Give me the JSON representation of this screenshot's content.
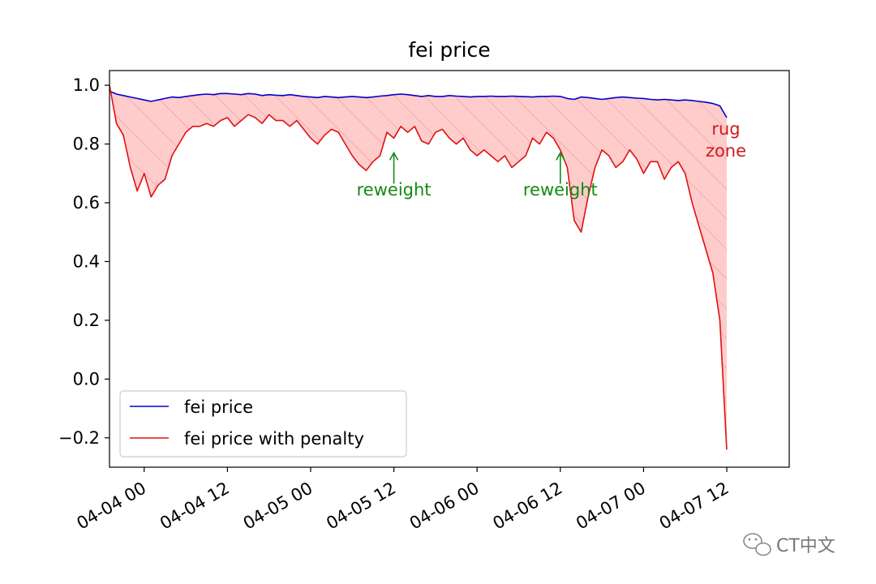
{
  "chart_data": {
    "type": "line",
    "title": "fei price",
    "xlabel": "",
    "ylabel": "",
    "xlim": [
      "2021-04-03 19:00",
      "2021-04-07 21:00"
    ],
    "ylim": [
      -0.3,
      1.05
    ],
    "grid": false,
    "legend_position": "lower-left",
    "x_ticks": [
      "04-04 00",
      "04-04 12",
      "04-05 00",
      "04-05 12",
      "04-06 00",
      "04-06 12",
      "04-07 00",
      "04-07 12"
    ],
    "y_ticks": [
      "1.0",
      "0.8",
      "0.6",
      "0.4",
      "0.2",
      "0.0",
      "−0.2"
    ],
    "x": [
      "2021-04-03 19:00",
      "2021-04-03 20:00",
      "2021-04-03 21:00",
      "2021-04-03 22:00",
      "2021-04-03 23:00",
      "2021-04-04 00:00",
      "2021-04-04 01:00",
      "2021-04-04 02:00",
      "2021-04-04 03:00",
      "2021-04-04 04:00",
      "2021-04-04 05:00",
      "2021-04-04 06:00",
      "2021-04-04 07:00",
      "2021-04-04 08:00",
      "2021-04-04 09:00",
      "2021-04-04 10:00",
      "2021-04-04 11:00",
      "2021-04-04 12:00",
      "2021-04-04 13:00",
      "2021-04-04 14:00",
      "2021-04-04 15:00",
      "2021-04-04 16:00",
      "2021-04-04 17:00",
      "2021-04-04 18:00",
      "2021-04-04 19:00",
      "2021-04-04 20:00",
      "2021-04-04 21:00",
      "2021-04-04 22:00",
      "2021-04-04 23:00",
      "2021-04-05 00:00",
      "2021-04-05 01:00",
      "2021-04-05 02:00",
      "2021-04-05 03:00",
      "2021-04-05 04:00",
      "2021-04-05 05:00",
      "2021-04-05 06:00",
      "2021-04-05 07:00",
      "2021-04-05 08:00",
      "2021-04-05 09:00",
      "2021-04-05 10:00",
      "2021-04-05 11:00",
      "2021-04-05 12:00",
      "2021-04-05 13:00",
      "2021-04-05 14:00",
      "2021-04-05 15:00",
      "2021-04-05 16:00",
      "2021-04-05 17:00",
      "2021-04-05 18:00",
      "2021-04-05 19:00",
      "2021-04-05 20:00",
      "2021-04-05 21:00",
      "2021-04-05 22:00",
      "2021-04-05 23:00",
      "2021-04-06 00:00",
      "2021-04-06 01:00",
      "2021-04-06 02:00",
      "2021-04-06 03:00",
      "2021-04-06 04:00",
      "2021-04-06 05:00",
      "2021-04-06 06:00",
      "2021-04-06 07:00",
      "2021-04-06 08:00",
      "2021-04-06 09:00",
      "2021-04-06 10:00",
      "2021-04-06 11:00",
      "2021-04-06 12:00",
      "2021-04-06 13:00",
      "2021-04-06 14:00",
      "2021-04-06 15:00",
      "2021-04-06 16:00",
      "2021-04-06 17:00",
      "2021-04-06 18:00",
      "2021-04-06 19:00",
      "2021-04-06 20:00",
      "2021-04-06 21:00",
      "2021-04-06 22:00",
      "2021-04-06 23:00",
      "2021-04-07 00:00",
      "2021-04-07 01:00",
      "2021-04-07 02:00",
      "2021-04-07 03:00",
      "2021-04-07 04:00",
      "2021-04-07 05:00",
      "2021-04-07 06:00",
      "2021-04-07 07:00",
      "2021-04-07 08:00",
      "2021-04-07 09:00",
      "2021-04-07 10:00",
      "2021-04-07 11:00",
      "2021-04-07 12:00"
    ],
    "series": [
      {
        "name": "fei price",
        "color": "#0000cc",
        "values": [
          0.98,
          0.97,
          0.965,
          0.96,
          0.955,
          0.95,
          0.945,
          0.95,
          0.955,
          0.96,
          0.958,
          0.962,
          0.965,
          0.968,
          0.97,
          0.968,
          0.972,
          0.972,
          0.97,
          0.968,
          0.972,
          0.97,
          0.965,
          0.968,
          0.966,
          0.965,
          0.968,
          0.965,
          0.962,
          0.96,
          0.958,
          0.962,
          0.96,
          0.958,
          0.96,
          0.962,
          0.96,
          0.958,
          0.96,
          0.963,
          0.965,
          0.968,
          0.97,
          0.968,
          0.965,
          0.962,
          0.965,
          0.962,
          0.962,
          0.965,
          0.963,
          0.962,
          0.96,
          0.962,
          0.962,
          0.963,
          0.962,
          0.962,
          0.963,
          0.962,
          0.961,
          0.96,
          0.962,
          0.962,
          0.963,
          0.962,
          0.955,
          0.952,
          0.96,
          0.958,
          0.955,
          0.952,
          0.955,
          0.958,
          0.96,
          0.958,
          0.956,
          0.955,
          0.952,
          0.95,
          0.952,
          0.95,
          0.948,
          0.95,
          0.948,
          0.945,
          0.942,
          0.938,
          0.93,
          0.89
        ]
      },
      {
        "name": "fei price with penalty",
        "color": "#e01010",
        "values": [
          1.0,
          0.87,
          0.83,
          0.72,
          0.64,
          0.7,
          0.62,
          0.66,
          0.68,
          0.76,
          0.8,
          0.84,
          0.86,
          0.86,
          0.87,
          0.86,
          0.88,
          0.89,
          0.86,
          0.88,
          0.9,
          0.89,
          0.87,
          0.9,
          0.88,
          0.88,
          0.86,
          0.88,
          0.85,
          0.82,
          0.8,
          0.83,
          0.85,
          0.84,
          0.8,
          0.76,
          0.73,
          0.71,
          0.74,
          0.76,
          0.84,
          0.82,
          0.86,
          0.84,
          0.86,
          0.81,
          0.8,
          0.84,
          0.85,
          0.82,
          0.8,
          0.82,
          0.78,
          0.76,
          0.78,
          0.76,
          0.74,
          0.76,
          0.72,
          0.74,
          0.76,
          0.82,
          0.8,
          0.84,
          0.82,
          0.78,
          0.72,
          0.54,
          0.5,
          0.62,
          0.72,
          0.78,
          0.76,
          0.72,
          0.74,
          0.78,
          0.75,
          0.7,
          0.74,
          0.74,
          0.68,
          0.72,
          0.74,
          0.7,
          0.6,
          0.52,
          0.44,
          0.36,
          0.2,
          -0.24
        ]
      }
    ],
    "fill_label": "rug\nzone",
    "annotations": [
      {
        "text": "reweight",
        "x": "2021-04-05 12:00",
        "y": 0.77,
        "text_y": 0.62,
        "color": "#138a13"
      },
      {
        "text": "reweight",
        "x": "2021-04-06 12:00",
        "y": 0.77,
        "text_y": 0.62,
        "color": "#138a13"
      },
      {
        "text": "rug",
        "color": "#d11a1a"
      },
      {
        "text": "zone",
        "color": "#d11a1a"
      }
    ]
  },
  "watermark": {
    "text": "CT中文",
    "icon": "wechat-icon"
  }
}
